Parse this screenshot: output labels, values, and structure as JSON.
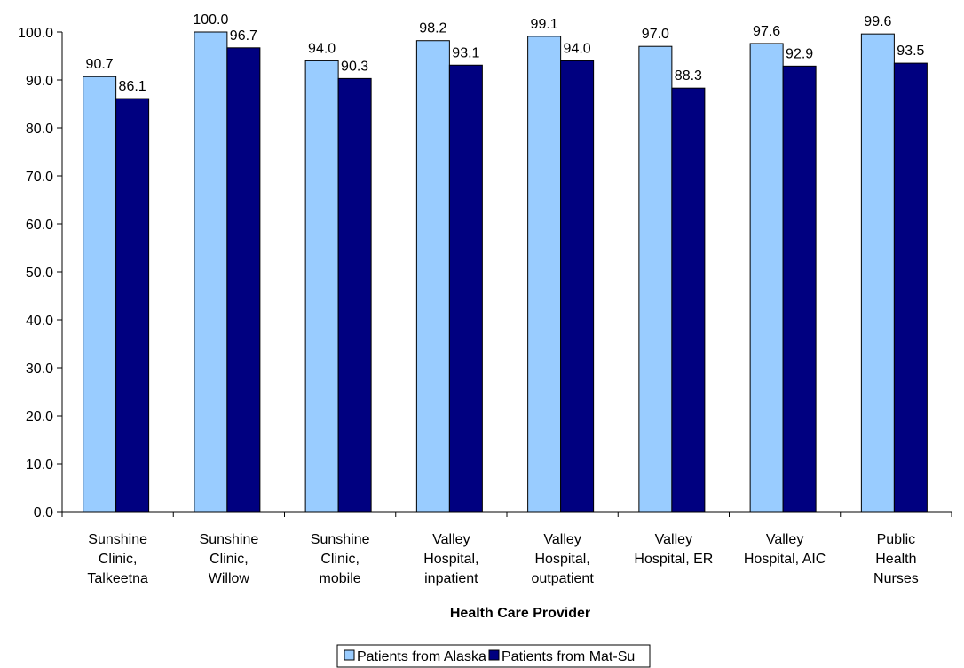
{
  "chart_data": {
    "type": "bar",
    "title": "",
    "xlabel": "Health Care Provider",
    "ylabel": "",
    "ylim": [
      0,
      100
    ],
    "ytick_step": 10,
    "ytick_labels": [
      "0.0",
      "10.0",
      "20.0",
      "30.0",
      "40.0",
      "50.0",
      "60.0",
      "70.0",
      "80.0",
      "90.0",
      "100.0"
    ],
    "grid": false,
    "legend_position": "bottom-center",
    "categories": [
      [
        "Sunshine",
        "Clinic,",
        "Talkeetna"
      ],
      [
        "Sunshine",
        "Clinic,",
        "Willow"
      ],
      [
        "Sunshine",
        "Clinic,",
        "mobile"
      ],
      [
        "Valley",
        "Hospital,",
        "inpatient"
      ],
      [
        "Valley",
        "Hospital,",
        "outpatient"
      ],
      [
        "Valley",
        "Hospital, ER"
      ],
      [
        "Valley",
        "Hospital, AIC"
      ],
      [
        "Public",
        "Health",
        "Nurses"
      ]
    ],
    "series": [
      {
        "name": "Patients from Alaska",
        "color": "#99ccff",
        "values": [
          90.7,
          100.0,
          94.0,
          98.2,
          99.1,
          97.0,
          97.6,
          99.6
        ]
      },
      {
        "name": "Patients from Mat-Su",
        "color": "#000080",
        "values": [
          86.1,
          96.7,
          90.3,
          93.1,
          94.0,
          88.3,
          92.9,
          93.5
        ]
      }
    ]
  }
}
